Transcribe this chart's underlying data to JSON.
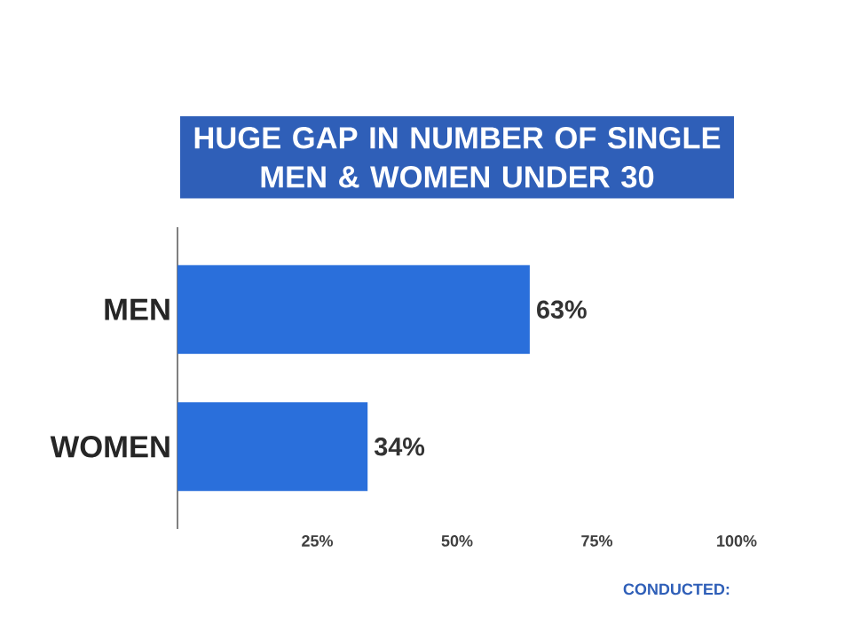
{
  "chart_data": {
    "type": "bar",
    "orientation": "horizontal",
    "title": "HUGE GAP IN NUMBER OF SINGLE MEN & WOMEN UNDER 30",
    "categories": [
      "MEN",
      "WOMEN"
    ],
    "values": [
      63,
      34
    ],
    "value_labels": [
      "63%",
      "34%"
    ],
    "color": "#2a6fdb",
    "xlim": [
      0,
      100
    ],
    "xticks": [
      {
        "value": 25,
        "label": "25%"
      },
      {
        "value": 50,
        "label": "50%"
      },
      {
        "value": 75,
        "label": "75%"
      },
      {
        "value": 100,
        "label": "100%"
      }
    ],
    "annotations": [
      "CONDUCTED:"
    ]
  }
}
